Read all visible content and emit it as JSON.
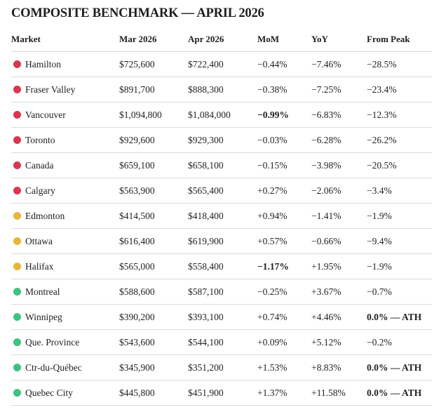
{
  "title": "COMPOSITE BENCHMARK — APRIL 2026",
  "columns": [
    "Market",
    "Mar 2026",
    "Apr 2026",
    "MoM",
    "YoY",
    "From Peak"
  ],
  "status_colors": {
    "red": "#d9374f",
    "yellow": "#e8b53a",
    "green": "#3fc27f"
  },
  "rows": [
    {
      "market": "Hamilton",
      "status": "red",
      "mar": "$725,600",
      "apr": "$722,400",
      "mom": "−0.44%",
      "yoy": "−7.46%",
      "peak": "−28.5%",
      "mom_bold": false,
      "peak_bold": false
    },
    {
      "market": "Fraser Valley",
      "status": "red",
      "mar": "$891,700",
      "apr": "$888,300",
      "mom": "−0.38%",
      "yoy": "−7.25%",
      "peak": "−23.4%",
      "mom_bold": false,
      "peak_bold": false
    },
    {
      "market": "Vancouver",
      "status": "red",
      "mar": "$1,094,800",
      "apr": "$1,084,000",
      "mom": "−0.99%",
      "yoy": "−6.83%",
      "peak": "−12.3%",
      "mom_bold": true,
      "peak_bold": false
    },
    {
      "market": "Toronto",
      "status": "red",
      "mar": "$929,600",
      "apr": "$929,300",
      "mom": "−0.03%",
      "yoy": "−6.28%",
      "peak": "−26.2%",
      "mom_bold": false,
      "peak_bold": false
    },
    {
      "market": "Canada",
      "status": "red",
      "mar": "$659,100",
      "apr": "$658,100",
      "mom": "−0.15%",
      "yoy": "−3.98%",
      "peak": "−20.5%",
      "mom_bold": false,
      "peak_bold": false
    },
    {
      "market": "Calgary",
      "status": "red",
      "mar": "$563,900",
      "apr": "$565,400",
      "mom": "+0.27%",
      "yoy": "−2.06%",
      "peak": "−3.4%",
      "mom_bold": false,
      "peak_bold": false
    },
    {
      "market": "Edmonton",
      "status": "yellow",
      "mar": "$414,500",
      "apr": "$418,400",
      "mom": "+0.94%",
      "yoy": "−1.41%",
      "peak": "−1.9%",
      "mom_bold": false,
      "peak_bold": false
    },
    {
      "market": "Ottawa",
      "status": "yellow",
      "mar": "$616,400",
      "apr": "$619,900",
      "mom": "+0.57%",
      "yoy": "−0.66%",
      "peak": "−9.4%",
      "mom_bold": false,
      "peak_bold": false
    },
    {
      "market": "Halifax",
      "status": "yellow",
      "mar": "$565,000",
      "apr": "$558,400",
      "mom": "−1.17%",
      "yoy": "+1.95%",
      "peak": "−1.9%",
      "mom_bold": true,
      "peak_bold": false
    },
    {
      "market": "Montreal",
      "status": "green",
      "mar": "$588,600",
      "apr": "$587,100",
      "mom": "−0.25%",
      "yoy": "+3.67%",
      "peak": "−0.7%",
      "mom_bold": false,
      "peak_bold": false
    },
    {
      "market": "Winnipeg",
      "status": "green",
      "mar": "$390,200",
      "apr": "$393,100",
      "mom": "+0.74%",
      "yoy": "+4.46%",
      "peak": "0.0% — ATH",
      "mom_bold": false,
      "peak_bold": true
    },
    {
      "market": "Que. Province",
      "status": "green",
      "mar": "$543,600",
      "apr": "$544,100",
      "mom": "+0.09%",
      "yoy": "+5.12%",
      "peak": "−0.2%",
      "mom_bold": false,
      "peak_bold": false
    },
    {
      "market": "Ctr-du-Québec",
      "status": "green",
      "mar": "$345,900",
      "apr": "$351,200",
      "mom": "+1.53%",
      "yoy": "+8.83%",
      "peak": "0.0% — ATH",
      "mom_bold": false,
      "peak_bold": true
    },
    {
      "market": "Quebec City",
      "status": "green",
      "mar": "$445,800",
      "apr": "$451,900",
      "mom": "+1.37%",
      "yoy": "+11.58%",
      "peak": "0.0% — ATH",
      "mom_bold": false,
      "peak_bold": true
    }
  ]
}
